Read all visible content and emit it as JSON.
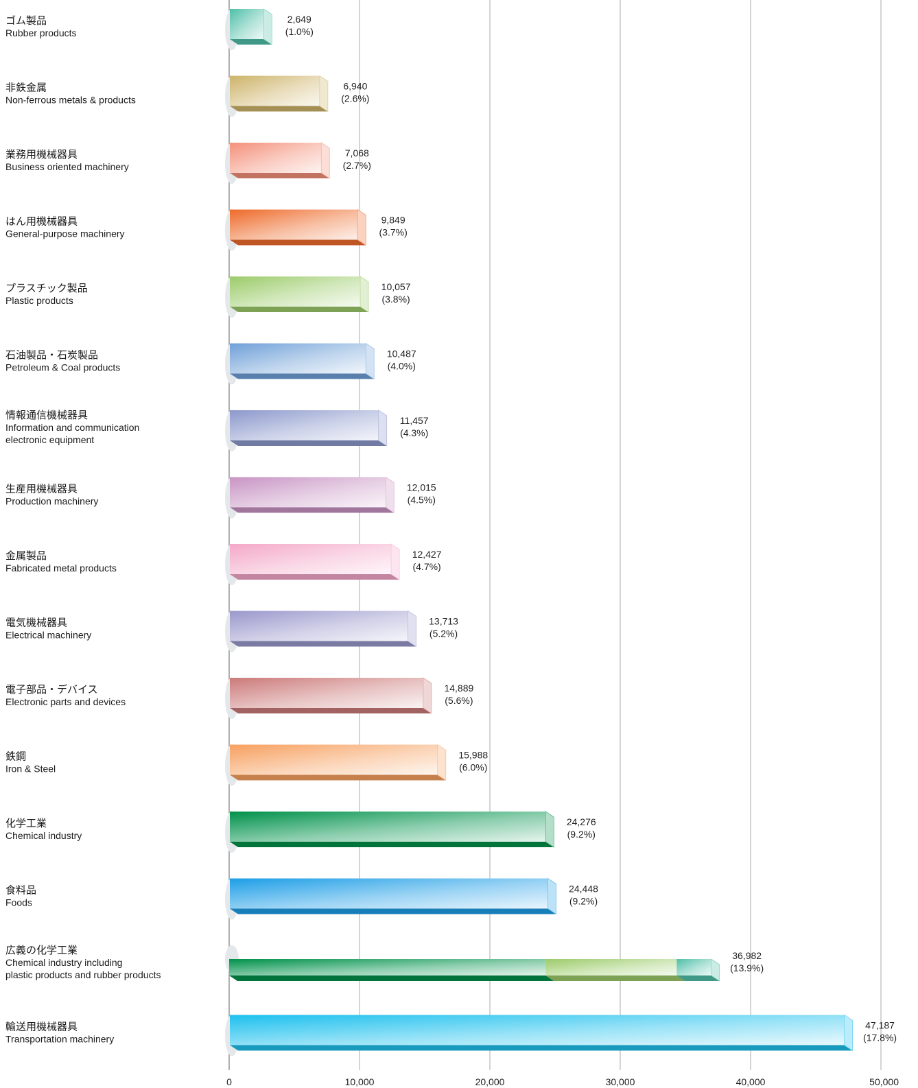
{
  "chart_data": {
    "type": "bar",
    "orientation": "horizontal",
    "grid": true,
    "xlim": [
      0,
      50000
    ],
    "x_ticks": [
      {
        "value": 0,
        "label": "0"
      },
      {
        "value": 10000,
        "label": "10,000"
      },
      {
        "value": 20000,
        "label": "20,000"
      },
      {
        "value": 30000,
        "label": "30,000"
      },
      {
        "value": 40000,
        "label": "40,000"
      },
      {
        "value": 50000,
        "label": "50,000"
      }
    ],
    "categories": [
      {
        "ja": "ゴム製品",
        "en": [
          "Rubber products"
        ],
        "value": 2649,
        "value_label": "2,649",
        "share_label": "(1.0%)",
        "color": "#4fbfa8"
      },
      {
        "ja": "非鉄金属",
        "en": [
          "Non-ferrous metals & products"
        ],
        "value": 6940,
        "value_label": "6,940",
        "share_label": "(2.6%)",
        "color": "#cdb46a"
      },
      {
        "ja": "業務用機械器具",
        "en": [
          "Business oriented machinery"
        ],
        "value": 7068,
        "value_label": "7,068",
        "share_label": "(2.7%)",
        "color": "#f4907a"
      },
      {
        "ja": "はん用機械器具",
        "en": [
          "General-purpose machinery"
        ],
        "value": 9849,
        "value_label": "9,849",
        "share_label": "(3.7%)",
        "color": "#ee6a2a"
      },
      {
        "ja": "プラスチック製品",
        "en": [
          "Plastic products"
        ],
        "value": 10057,
        "value_label": "10,057",
        "share_label": "(3.8%)",
        "color": "#9ccb6a"
      },
      {
        "ja": "石油製品・石炭製品",
        "en": [
          "Petroleum & Coal products"
        ],
        "value": 10487,
        "value_label": "10,487",
        "share_label": "(4.0%)",
        "color": "#6fa0d8"
      },
      {
        "ja": "情報通信機械器具",
        "en": [
          "Information and communication",
          "electronic equipment"
        ],
        "value": 11457,
        "value_label": "11,457",
        "share_label": "(4.3%)",
        "color": "#8c98cc"
      },
      {
        "ja": "生産用機械器具",
        "en": [
          "Production machinery"
        ],
        "value": 12015,
        "value_label": "12,015",
        "share_label": "(4.5%)",
        "color": "#c894c4"
      },
      {
        "ja": "金属製品",
        "en": [
          "Fabricated metal products"
        ],
        "value": 12427,
        "value_label": "12,427",
        "share_label": "(4.7%)",
        "color": "#f4a8c8"
      },
      {
        "ja": "電気機械器具",
        "en": [
          "Electrical machinery"
        ],
        "value": 13713,
        "value_label": "13,713",
        "share_label": "(5.2%)",
        "color": "#9a98cc"
      },
      {
        "ja": "電子部品・デバイス",
        "en": [
          "Electronic parts and devices"
        ],
        "value": 14889,
        "value_label": "14,889",
        "share_label": "(5.6%)",
        "color": "#cc7a7a"
      },
      {
        "ja": "鉄鋼",
        "en": [
          "Iron & Steel"
        ],
        "value": 15988,
        "value_label": "15,988",
        "share_label": "(6.0%)",
        "color": "#f7a060"
      },
      {
        "ja": "化学工業",
        "en": [
          "Chemical industry"
        ],
        "value": 24276,
        "value_label": "24,276",
        "share_label": "(9.2%)",
        "color": "#00914a"
      },
      {
        "ja": "食料品",
        "en": [
          "Foods"
        ],
        "value": 24448,
        "value_label": "24,448",
        "share_label": "(9.2%)",
        "color": "#1e9ee6"
      },
      {
        "ja": "広義の化学工業",
        "en": [
          "Chemical industry including",
          "plastic products and rubber products"
        ],
        "value": 36982,
        "value_label": "36,982",
        "share_label": "(13.9%)",
        "color": "#00914a",
        "segments": [
          {
            "value": 24276,
            "color": "#00914a"
          },
          {
            "value": 10057,
            "color": "#9ccb6a"
          },
          {
            "value": 2649,
            "color": "#4fbfa8"
          }
        ]
      },
      {
        "ja": "輸送用機械器具",
        "en": [
          "Transportation machinery"
        ],
        "value": 47187,
        "value_label": "47,187",
        "share_label": "(17.8%)",
        "color": "#1ec0ee"
      }
    ]
  }
}
